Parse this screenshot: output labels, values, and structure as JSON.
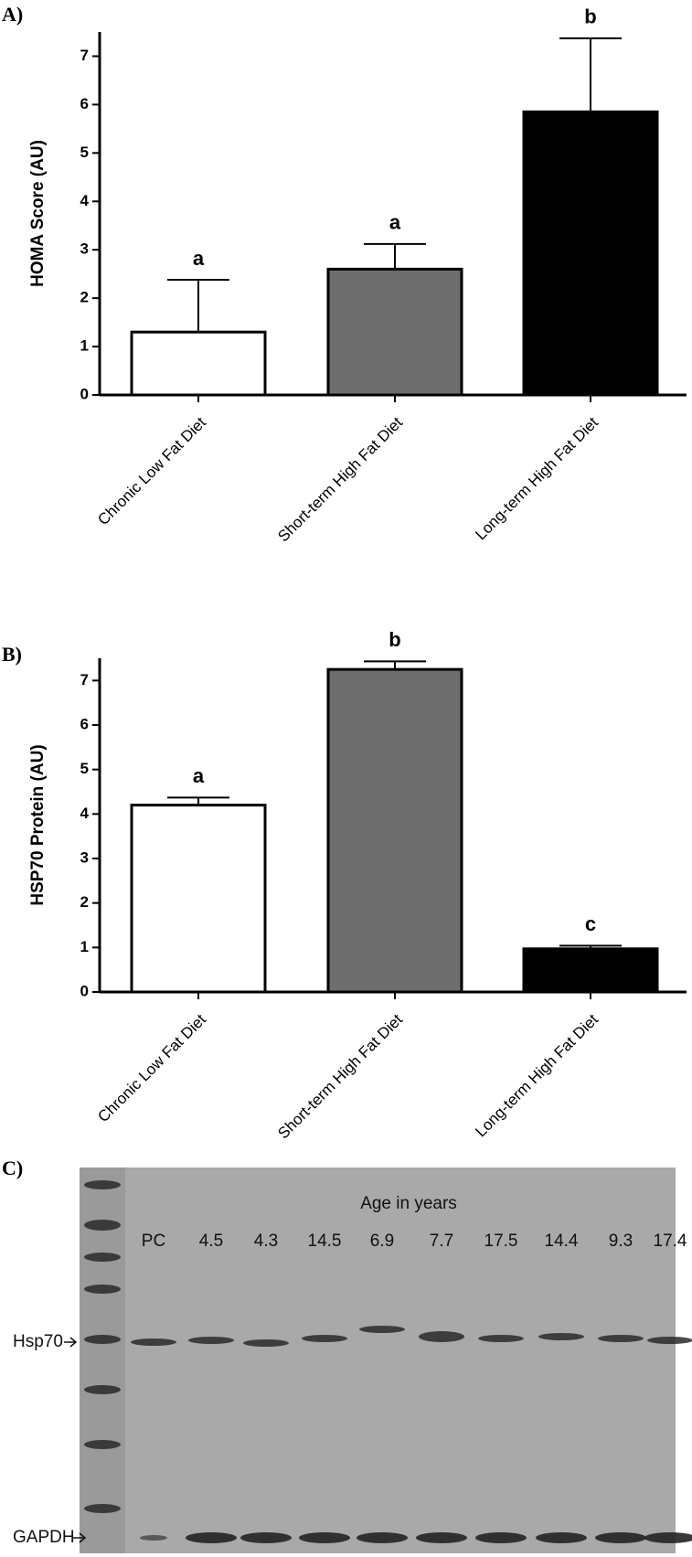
{
  "chart_data": [
    {
      "type": "bar",
      "panel": "A)",
      "ylabel": "HOMA Score (AU)",
      "categories": [
        "Chronic Low Fat Diet",
        "Short-term High Fat Diet",
        "Long-term High Fat Diet"
      ],
      "values": [
        1.3,
        2.6,
        5.85
      ],
      "errors": [
        1.08,
        0.52,
        1.52
      ],
      "colors": [
        "#ffffff",
        "#6e6e6e",
        "#000000"
      ],
      "annotations": [
        "a",
        "a",
        "b"
      ],
      "ylim": [
        0,
        7.5
      ],
      "yticks": [
        0,
        1,
        2,
        3,
        4,
        5,
        6,
        7
      ]
    },
    {
      "type": "bar",
      "panel": "B)",
      "ylabel": "HSP70 Protein  (AU)",
      "categories": [
        "Chronic Low Fat Diet",
        "Short-term High Fat Diet",
        "Long-term High Fat Diet"
      ],
      "values": [
        4.2,
        7.25,
        0.97
      ],
      "errors": [
        0.17,
        0.18,
        0.07
      ],
      "colors": [
        "#ffffff",
        "#6e6e6e",
        "#000000"
      ],
      "annotations": [
        "a",
        "b",
        "c"
      ],
      "ylim": [
        0,
        7.5
      ],
      "yticks": [
        0,
        1,
        2,
        3,
        4,
        5,
        6,
        7
      ]
    }
  ],
  "blot": {
    "panel": "C)",
    "title": "Age in years",
    "lanes": [
      "PC",
      "4.5",
      "4.3",
      "14.5",
      "6.9",
      "7.7",
      "17.5",
      "14.4",
      "9.3",
      "17.4"
    ],
    "rows": [
      "Hsp70",
      "GAPDH"
    ]
  }
}
